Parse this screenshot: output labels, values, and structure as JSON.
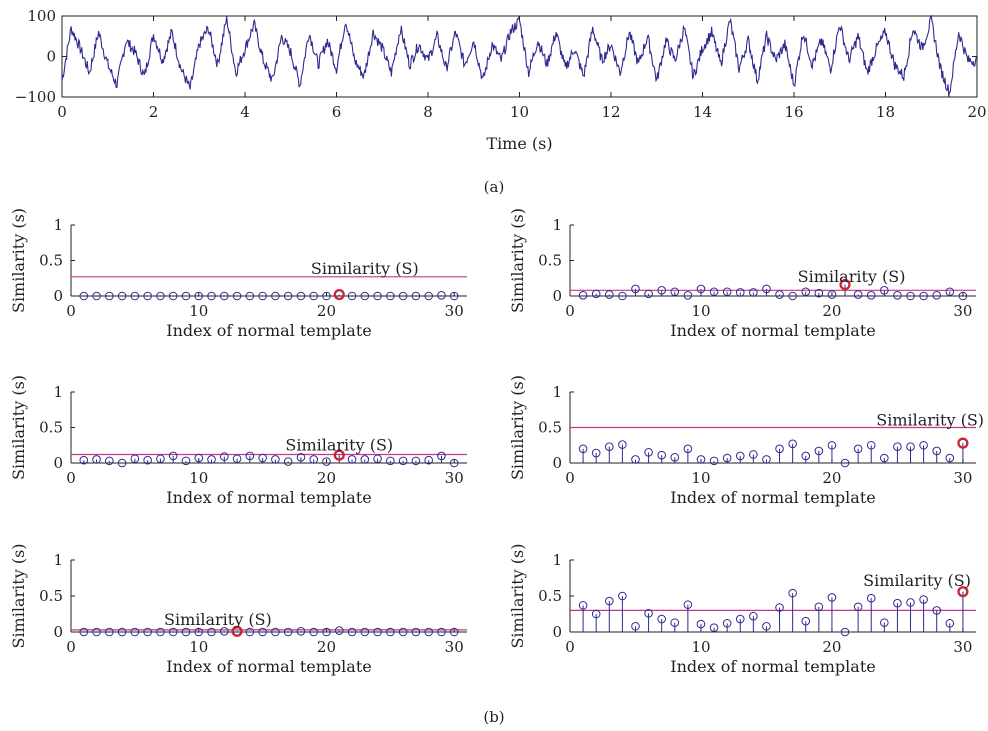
{
  "figure": {
    "caption_a": "(a)",
    "caption_b": "(b)",
    "colors": {
      "trace": "#2e2a8f",
      "stem": "#2e2a8f",
      "threshold": "#c0398c",
      "highlight": "#d7232a",
      "axis": "#231f20"
    }
  },
  "chart_data": [
    {
      "type": "line",
      "id": "time-signal",
      "xlabel": "Time (s)",
      "ylabel": "",
      "xlim": [
        0,
        20
      ],
      "ylim": [
        -100,
        100
      ],
      "xticks": [
        0,
        2,
        4,
        6,
        8,
        10,
        12,
        14,
        16,
        18,
        20
      ],
      "yticks": [
        -100,
        0,
        100
      ],
      "ytick_labels": [
        "−100",
        "0",
        "100"
      ],
      "series": [
        {
          "values_note_free": true,
          "x": [
            0,
            0.2,
            0.4,
            0.6,
            0.8,
            1.0,
            1.2,
            1.4,
            1.6,
            1.8,
            2.0,
            2.2,
            2.4,
            2.6,
            2.8,
            3.0,
            3.2,
            3.4,
            3.6,
            3.8,
            4.0,
            4.2,
            4.4,
            4.6,
            4.8,
            5.0,
            5.2,
            5.4,
            5.6,
            5.8,
            6.0,
            6.2,
            6.4,
            6.6,
            6.8,
            7.0,
            7.2,
            7.4,
            7.6,
            7.8,
            8.0,
            8.2,
            8.4,
            8.6,
            8.8,
            9.0,
            9.2,
            9.4,
            9.6,
            9.8,
            10.0,
            10.2,
            10.4,
            10.6,
            10.8,
            11.0,
            11.2,
            11.4,
            11.6,
            11.8,
            12.0,
            12.2,
            12.4,
            12.6,
            12.8,
            13.0,
            13.2,
            13.4,
            13.6,
            13.8,
            14.0,
            14.2,
            14.4,
            14.6,
            14.8,
            15.0,
            15.2,
            15.4,
            15.6,
            15.8,
            16.0,
            16.2,
            16.4,
            16.6,
            16.8,
            17.0,
            17.2,
            17.4,
            17.6,
            17.8,
            18.0,
            18.2,
            18.4,
            18.6,
            18.8,
            19.0,
            19.2,
            19.4,
            19.6,
            19.8,
            20.0
          ],
          "y": [
            -60,
            70,
            20,
            -40,
            60,
            -20,
            -70,
            40,
            10,
            -50,
            55,
            -10,
            60,
            -30,
            -80,
            30,
            70,
            -20,
            95,
            -40,
            20,
            80,
            -10,
            -60,
            50,
            10,
            -70,
            60,
            -20,
            40,
            -30,
            90,
            -10,
            -50,
            60,
            20,
            -40,
            70,
            -20,
            30,
            -10,
            50,
            -30,
            60,
            -20,
            40,
            -60,
            30,
            -10,
            60,
            90,
            -40,
            40,
            -20,
            60,
            -30,
            20,
            -50,
            70,
            -10,
            30,
            -40,
            60,
            -20,
            50,
            -60,
            40,
            -10,
            70,
            -50,
            20,
            60,
            -20,
            90,
            -30,
            40,
            -60,
            50,
            -10,
            30,
            -70,
            60,
            -20,
            40,
            -30,
            80,
            -10,
            50,
            -40,
            20,
            60,
            -20,
            -50,
            70,
            20,
            90,
            -30,
            -90,
            60,
            -10,
            -10
          ]
        }
      ]
    },
    {
      "type": "stem",
      "id": "panel-b1",
      "xlabel": "Index of normal template",
      "ylabel": "Similarity (s)",
      "xlim": [
        0,
        31
      ],
      "ylim": [
        0,
        1
      ],
      "xticks": [
        0,
        10,
        20,
        30
      ],
      "yticks": [
        0,
        0.5,
        1
      ],
      "ytick_labels": [
        "0",
        "0.5",
        "1"
      ],
      "x": [
        1,
        2,
        3,
        4,
        5,
        6,
        7,
        8,
        9,
        10,
        11,
        12,
        13,
        14,
        15,
        16,
        17,
        18,
        19,
        20,
        21,
        22,
        23,
        24,
        25,
        26,
        27,
        28,
        29,
        30
      ],
      "values": [
        0,
        0,
        0,
        0,
        0,
        0,
        0,
        0,
        0,
        0,
        0,
        0,
        0,
        0,
        0,
        0,
        0,
        0,
        0,
        0,
        0.02,
        0,
        0,
        0,
        0,
        0,
        0,
        0,
        0.01,
        0
      ],
      "threshold": 0.27,
      "highlight_index": 21,
      "highlight_value": 0.02,
      "annotation": "Similarity (S)",
      "annotation_x": 23,
      "annotation_y": 0.38
    },
    {
      "type": "stem",
      "id": "panel-b2",
      "xlabel": "Index of normal template",
      "ylabel": "Similarity (s)",
      "xlim": [
        0,
        31
      ],
      "ylim": [
        0,
        1
      ],
      "xticks": [
        0,
        10,
        20,
        30
      ],
      "yticks": [
        0,
        0.5,
        1
      ],
      "ytick_labels": [
        "0",
        "0.5",
        "1"
      ],
      "x": [
        1,
        2,
        3,
        4,
        5,
        6,
        7,
        8,
        9,
        10,
        11,
        12,
        13,
        14,
        15,
        16,
        17,
        18,
        19,
        20,
        21,
        22,
        23,
        24,
        25,
        26,
        27,
        28,
        29,
        30
      ],
      "values": [
        0.01,
        0.03,
        0.02,
        0,
        0.1,
        0.03,
        0.08,
        0.06,
        0.01,
        0.1,
        0.06,
        0.06,
        0.05,
        0.05,
        0.1,
        0.02,
        0,
        0.06,
        0.04,
        0.02,
        0.16,
        0.02,
        0.01,
        0.08,
        0.01,
        0,
        0,
        0.01,
        0.06,
        0
      ],
      "threshold": 0.08,
      "highlight_index": 21,
      "highlight_value": 0.16,
      "annotation": "Similarity (S)",
      "annotation_x": 21.5,
      "annotation_y": 0.27
    },
    {
      "type": "stem",
      "id": "panel-b3",
      "xlabel": "Index of normal template",
      "ylabel": "Similarity (s)",
      "xlim": [
        0,
        31
      ],
      "ylim": [
        0,
        1
      ],
      "xticks": [
        0,
        10,
        20,
        30
      ],
      "yticks": [
        0,
        0.5,
        1
      ],
      "ytick_labels": [
        "0",
        "0.5",
        "1"
      ],
      "x": [
        1,
        2,
        3,
        4,
        5,
        6,
        7,
        8,
        9,
        10,
        11,
        12,
        13,
        14,
        15,
        16,
        17,
        18,
        19,
        20,
        21,
        22,
        23,
        24,
        25,
        26,
        27,
        28,
        29,
        30
      ],
      "values": [
        0.04,
        0.05,
        0.03,
        0,
        0.06,
        0.04,
        0.06,
        0.1,
        0.03,
        0.07,
        0.05,
        0.09,
        0.06,
        0.1,
        0.07,
        0.05,
        0.02,
        0.08,
        0.05,
        0.02,
        0.11,
        0.05,
        0.05,
        0.06,
        0.03,
        0.03,
        0.03,
        0.04,
        0.1,
        0
      ],
      "threshold": 0.12,
      "highlight_index": 21,
      "highlight_value": 0.11,
      "annotation": "Similarity (S)",
      "annotation_x": 21,
      "annotation_y": 0.25
    },
    {
      "type": "stem",
      "id": "panel-b4",
      "xlabel": "Index of normal template",
      "ylabel": "Similarity (s)",
      "xlim": [
        0,
        31
      ],
      "ylim": [
        0,
        1
      ],
      "xticks": [
        0,
        10,
        20,
        30
      ],
      "yticks": [
        0,
        0.5,
        1
      ],
      "ytick_labels": [
        "0",
        "0.5",
        "1"
      ],
      "x": [
        1,
        2,
        3,
        4,
        5,
        6,
        7,
        8,
        9,
        10,
        11,
        12,
        13,
        14,
        15,
        16,
        17,
        18,
        19,
        20,
        21,
        22,
        23,
        24,
        25,
        26,
        27,
        28,
        29,
        30
      ],
      "values": [
        0.2,
        0.14,
        0.23,
        0.26,
        0.05,
        0.15,
        0.11,
        0.08,
        0.2,
        0.05,
        0.03,
        0.07,
        0.1,
        0.12,
        0.05,
        0.2,
        0.27,
        0.1,
        0.17,
        0.25,
        0,
        0.2,
        0.25,
        0.07,
        0.23,
        0.23,
        0.25,
        0.17,
        0.07,
        0.28
      ],
      "threshold": 0.5,
      "highlight_index": 30,
      "highlight_value": 0.28,
      "annotation": "Similarity (S)",
      "annotation_x": 27.5,
      "annotation_y": 0.6
    },
    {
      "type": "stem",
      "id": "panel-b5",
      "xlabel": "Index of normal template",
      "ylabel": "Similarity (s)",
      "xlim": [
        0,
        31
      ],
      "ylim": [
        0,
        1
      ],
      "xticks": [
        0,
        10,
        20,
        30
      ],
      "yticks": [
        0,
        0.5,
        1
      ],
      "ytick_labels": [
        "0",
        "0.5",
        "1"
      ],
      "x": [
        1,
        2,
        3,
        4,
        5,
        6,
        7,
        8,
        9,
        10,
        11,
        12,
        13,
        14,
        15,
        16,
        17,
        18,
        19,
        20,
        21,
        22,
        23,
        24,
        25,
        26,
        27,
        28,
        29,
        30
      ],
      "values": [
        0,
        0,
        0,
        0,
        0,
        0,
        0,
        0,
        0,
        0,
        0,
        0.01,
        0.01,
        0,
        0,
        0,
        0,
        0.01,
        0,
        0,
        0.02,
        0,
        0,
        0,
        0,
        0,
        0,
        0,
        0,
        0
      ],
      "threshold": 0.03,
      "highlight_index": 13,
      "highlight_value": 0.01,
      "annotation": "Similarity (S)",
      "annotation_x": 11.5,
      "annotation_y": 0.17
    },
    {
      "type": "stem",
      "id": "panel-b6",
      "xlabel": "Index of normal template",
      "ylabel": "Similarity (s)",
      "xlim": [
        0,
        31
      ],
      "ylim": [
        0,
        1
      ],
      "xticks": [
        0,
        10,
        20,
        30
      ],
      "yticks": [
        0,
        0.5,
        1
      ],
      "ytick_labels": [
        "0",
        "0.5",
        "1"
      ],
      "x": [
        1,
        2,
        3,
        4,
        5,
        6,
        7,
        8,
        9,
        10,
        11,
        12,
        13,
        14,
        15,
        16,
        17,
        18,
        19,
        20,
        21,
        22,
        23,
        24,
        25,
        26,
        27,
        28,
        29,
        30
      ],
      "values": [
        0.37,
        0.25,
        0.43,
        0.5,
        0.08,
        0.26,
        0.18,
        0.13,
        0.38,
        0.11,
        0.06,
        0.12,
        0.18,
        0.22,
        0.08,
        0.34,
        0.54,
        0.15,
        0.35,
        0.48,
        0,
        0.35,
        0.47,
        0.13,
        0.4,
        0.41,
        0.45,
        0.3,
        0.12,
        0.56
      ],
      "threshold": 0.3,
      "highlight_index": 30,
      "highlight_value": 0.56,
      "annotation": "Similarity (S)",
      "annotation_x": 26.5,
      "annotation_y": 0.71
    }
  ]
}
